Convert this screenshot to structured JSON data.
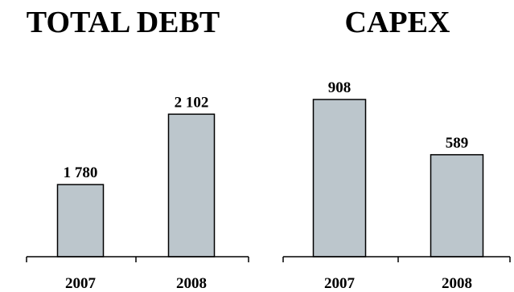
{
  "colors": {
    "bar_fill": "#bcc6cc",
    "bar_stroke": "#000000",
    "text": "#000000",
    "background": "#ffffff"
  },
  "chart_data": [
    {
      "type": "bar",
      "title": "TOTAL DEBT",
      "categories": [
        "2007",
        "2008"
      ],
      "values": [
        1780,
        2102
      ],
      "data_labels": [
        "1 780",
        "2 102"
      ],
      "ylim": [
        1450,
        2250
      ],
      "grid": false,
      "legend": "none"
    },
    {
      "type": "bar",
      "title": "CAPEX",
      "categories": [
        "2007",
        "2008"
      ],
      "values": [
        908,
        589
      ],
      "data_labels": [
        "908",
        "589"
      ],
      "ylim": [
        0,
        1010
      ],
      "grid": false,
      "legend": "none"
    }
  ]
}
